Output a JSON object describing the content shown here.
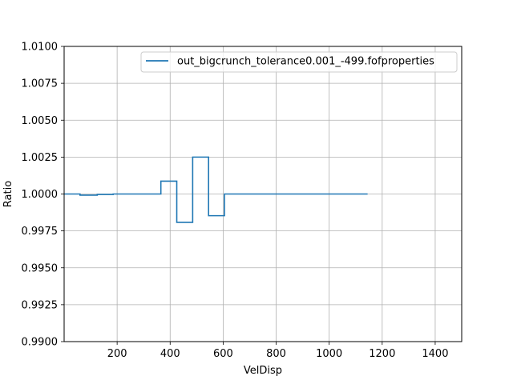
{
  "chart_data": {
    "type": "line",
    "drawstyle": "steps-post",
    "xlabel": "VelDisp",
    "ylabel": "Ratio",
    "xlim": [
      0,
      1500
    ],
    "ylim": [
      0.99,
      1.01
    ],
    "xticks": [
      200,
      400,
      600,
      800,
      1000,
      1200,
      1400
    ],
    "xtick_labels": [
      "200",
      "400",
      "600",
      "800",
      "1000",
      "1200",
      "1400"
    ],
    "yticks": [
      0.99,
      0.9925,
      0.995,
      0.9975,
      1.0,
      1.0025,
      1.005,
      1.0075,
      1.01
    ],
    "ytick_labels": [
      "0.9900",
      "0.9925",
      "0.9950",
      "0.9975",
      "1.0000",
      "1.0025",
      "1.0050",
      "1.0075",
      "1.0100"
    ],
    "grid": true,
    "legend_position": "top-right",
    "color": "#1f77b4",
    "series": [
      {
        "name": "out_bigcrunch_tolerance0.001_-499.fofproperties",
        "x": [
          0,
          60,
          125,
          185,
          365,
          425,
          485,
          545,
          605,
          1145
        ],
        "y": [
          1.0,
          0.99992,
          0.99997,
          1.0,
          1.00087,
          0.99808,
          1.0025,
          0.99853,
          1.0,
          1.0
        ]
      }
    ]
  }
}
